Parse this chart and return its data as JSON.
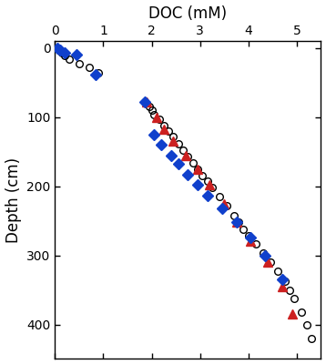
{
  "title": "DOC (mM)",
  "ylabel": "Depth (cm)",
  "xlim": [
    0,
    5.5
  ],
  "ylim": [
    450,
    -10
  ],
  "xticks": [
    0,
    1,
    2,
    3,
    4,
    5
  ],
  "yticks": [
    0,
    100,
    200,
    300,
    400
  ],
  "circles": {
    "doc": [
      0.05,
      0.1,
      0.15,
      0.2,
      0.3,
      0.5,
      0.7,
      0.9,
      1.85,
      1.95,
      2.0,
      2.05,
      2.15,
      2.25,
      2.35,
      2.45,
      2.55,
      2.65,
      2.75,
      2.85,
      2.95,
      3.05,
      3.15,
      3.25,
      3.4,
      3.55,
      3.7,
      3.8,
      3.9,
      4.0,
      4.15,
      4.3,
      4.45,
      4.6,
      4.75,
      4.85,
      4.95,
      5.1,
      5.2,
      5.3
    ],
    "depth": [
      0,
      4,
      7,
      11,
      16,
      22,
      28,
      35,
      78,
      85,
      90,
      96,
      103,
      112,
      120,
      128,
      138,
      147,
      157,
      166,
      175,
      184,
      193,
      202,
      215,
      228,
      242,
      252,
      262,
      272,
      284,
      297,
      310,
      323,
      338,
      350,
      363,
      382,
      400,
      420
    ]
  },
  "blue_diamonds": {
    "doc": [
      0.05,
      0.1,
      0.2,
      0.45,
      0.85,
      1.85,
      2.05,
      2.2,
      2.4,
      2.55,
      2.75,
      2.95,
      3.15,
      3.45,
      3.75,
      4.05,
      4.35,
      4.7
    ],
    "depth": [
      0,
      3,
      6,
      9,
      38,
      78,
      125,
      140,
      155,
      168,
      183,
      198,
      213,
      232,
      252,
      274,
      300,
      335
    ]
  },
  "red_triangles": {
    "doc": [
      1.9,
      2.1,
      2.25,
      2.45,
      2.7,
      2.95,
      3.2,
      3.5,
      3.75,
      4.05,
      4.4,
      4.7,
      4.9
    ],
    "depth": [
      78,
      100,
      118,
      135,
      155,
      175,
      198,
      225,
      252,
      280,
      310,
      345,
      385
    ]
  },
  "circle_color": "#000000",
  "blue_color": "#1040cc",
  "red_color": "#cc2020",
  "bg_color": "#ffffff",
  "marker_size_circle": 5.5,
  "marker_size_filled": 6.5,
  "linewidth_circle": 1.0
}
